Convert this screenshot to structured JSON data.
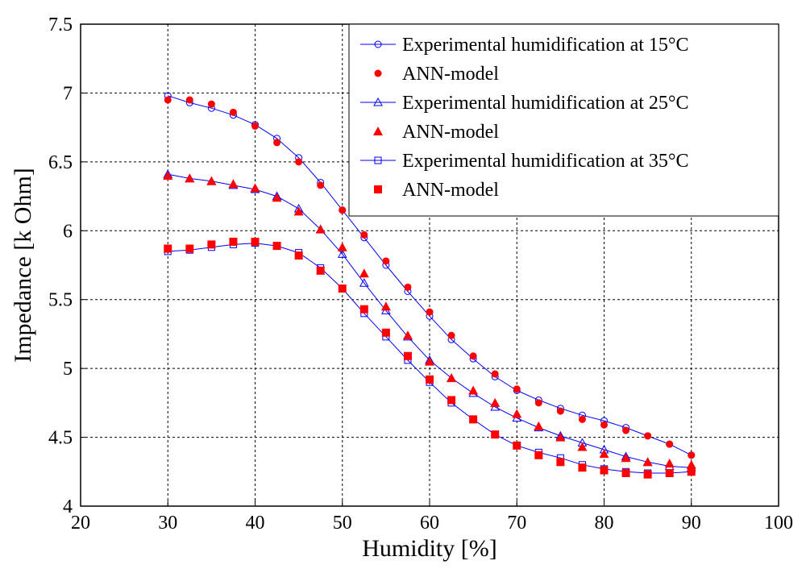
{
  "chart_data": {
    "type": "line",
    "title": "",
    "xlabel": "Humidity [%]",
    "ylabel": "Impedance [k Ohm]",
    "xlim": [
      20,
      100
    ],
    "ylim": [
      4,
      7.5
    ],
    "xticks": [
      "20",
      "30",
      "40",
      "50",
      "60",
      "70",
      "80",
      "90",
      "100"
    ],
    "yticks": [
      "4",
      "4.5",
      "5",
      "5.5",
      "6",
      "6.5",
      "7",
      "7.5"
    ],
    "grid": true,
    "legend_position": "top-right",
    "x": [
      30,
      32.5,
      35,
      37.5,
      40,
      42.5,
      45,
      47.5,
      50,
      52.5,
      55,
      57.5,
      60,
      62.5,
      65,
      67.5,
      70,
      72.5,
      75,
      77.5,
      80,
      82.5,
      85,
      87.5,
      90
    ],
    "series": [
      {
        "name": "Experimental humidification at 15°C",
        "style": "line-circle-open",
        "color": "#0000ff",
        "values": [
          6.98,
          6.93,
          6.89,
          6.84,
          6.77,
          6.67,
          6.53,
          6.35,
          6.15,
          5.95,
          5.75,
          5.56,
          5.38,
          5.21,
          5.07,
          4.94,
          4.84,
          4.77,
          4.71,
          4.66,
          4.62,
          4.57,
          4.51,
          4.45,
          4.37
        ]
      },
      {
        "name": "ANN-model",
        "style": "marker-circle-filled",
        "color": "#ff0000",
        "values": [
          6.95,
          6.95,
          6.92,
          6.86,
          6.76,
          6.64,
          6.5,
          6.33,
          6.15,
          5.97,
          5.78,
          5.59,
          5.41,
          5.24,
          5.09,
          4.96,
          4.85,
          4.75,
          4.69,
          4.63,
          4.59,
          4.55,
          4.51,
          4.45,
          4.37
        ]
      },
      {
        "name": "Experimental humidification at 25°C",
        "style": "line-triangle-open",
        "color": "#0000ff",
        "values": [
          6.41,
          6.38,
          6.36,
          6.33,
          6.3,
          6.25,
          6.16,
          6.01,
          5.83,
          5.62,
          5.42,
          5.23,
          5.06,
          4.93,
          4.82,
          4.72,
          4.64,
          4.57,
          4.51,
          4.46,
          4.41,
          4.36,
          4.32,
          4.29,
          4.28
        ]
      },
      {
        "name": "ANN-model",
        "style": "marker-triangle-filled",
        "color": "#ff0000",
        "values": [
          6.4,
          6.38,
          6.36,
          6.34,
          6.31,
          6.24,
          6.14,
          6.01,
          5.88,
          5.69,
          5.45,
          5.24,
          5.05,
          4.93,
          4.84,
          4.75,
          4.67,
          4.58,
          4.5,
          4.43,
          4.38,
          4.35,
          4.32,
          4.31,
          4.3
        ]
      },
      {
        "name": "Experimental humidification at 35°C",
        "style": "line-square-open",
        "color": "#0000ff",
        "values": [
          5.85,
          5.86,
          5.88,
          5.9,
          5.91,
          5.89,
          5.84,
          5.73,
          5.58,
          5.4,
          5.23,
          5.06,
          4.9,
          4.75,
          4.63,
          4.52,
          4.44,
          4.39,
          4.35,
          4.3,
          4.27,
          4.25,
          4.24,
          4.24,
          4.25
        ]
      },
      {
        "name": "ANN-model",
        "style": "marker-square-filled",
        "color": "#ff0000",
        "values": [
          5.87,
          5.87,
          5.9,
          5.92,
          5.92,
          5.89,
          5.82,
          5.71,
          5.58,
          5.43,
          5.26,
          5.09,
          4.92,
          4.77,
          4.63,
          4.52,
          4.44,
          4.37,
          4.32,
          4.28,
          4.26,
          4.24,
          4.23,
          4.24,
          4.25
        ]
      }
    ]
  }
}
